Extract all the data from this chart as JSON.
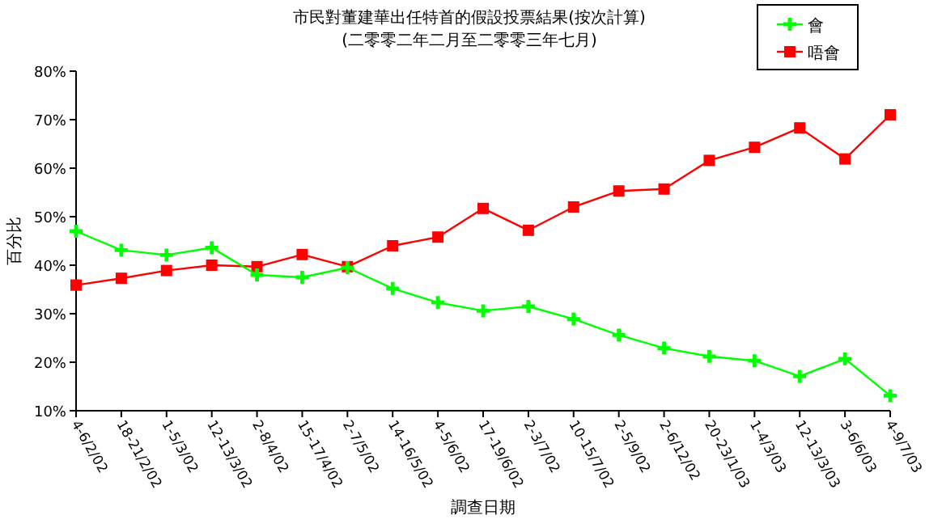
{
  "chart_data": {
    "type": "line",
    "title": "市民對董建華出任特首的假設投票結果(按次計算)",
    "subtitle": "(二零零二年二月至二零零三年七月)",
    "xlabel": "調查日期",
    "ylabel": "百分比",
    "categories": [
      "4-6/2/02",
      "18-21/2/02",
      "1-5/3/02",
      "12-13/3/02",
      "2-8/4/02",
      "15-17/4/02",
      "2-7/5/02",
      "14-16/5/02",
      "4-5/6/02",
      "17-19/6/02",
      "2-3/7/02",
      "10-15/7/02",
      "2-5/9/02",
      "2-6/12/02",
      "20-23/1/03",
      "1-4/3/03",
      "12-13/3/03",
      "3-6/6/03",
      "4-9/7/03"
    ],
    "series": [
      {
        "name": "會",
        "color": "#00ff00",
        "marker": "cross",
        "values": [
          47.0,
          43.1,
          42.1,
          43.6,
          38.0,
          37.5,
          39.5,
          35.2,
          32.3,
          30.6,
          31.5,
          28.9,
          25.6,
          22.9,
          21.2,
          20.3,
          17.1,
          20.7,
          13.1
        ]
      },
      {
        "name": "唔會",
        "color": "#ff0000",
        "marker": "square",
        "values": [
          35.9,
          37.3,
          38.9,
          40.0,
          39.7,
          42.2,
          39.7,
          44.0,
          45.8,
          51.7,
          47.2,
          52.0,
          55.3,
          55.7,
          61.6,
          64.3,
          68.3,
          61.9,
          71.0
        ]
      }
    ],
    "ylim": [
      10,
      80
    ],
    "yticks": [
      {
        "value": 10,
        "label": "10%"
      },
      {
        "value": 20,
        "label": "20%"
      },
      {
        "value": 30,
        "label": "30%"
      },
      {
        "value": 40,
        "label": "40%"
      },
      {
        "value": 50,
        "label": "50%"
      },
      {
        "value": 60,
        "label": "60%"
      },
      {
        "value": 70,
        "label": "70%"
      },
      {
        "value": 80,
        "label": "80%"
      }
    ],
    "legend": "top right",
    "grid": false,
    "line_style": "solid"
  }
}
